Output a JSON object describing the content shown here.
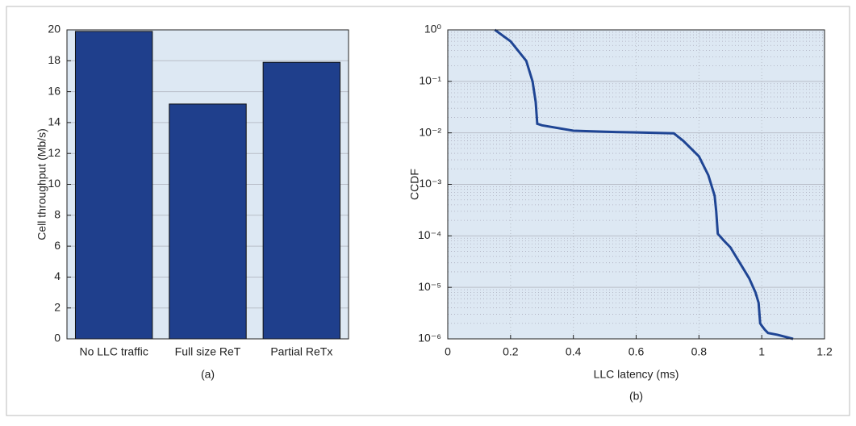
{
  "chart_data": [
    {
      "type": "bar",
      "ylabel": "Cell throughput (Mb/s)",
      "caption": "(a)",
      "categories": [
        "No LLC traffic",
        "Full size ReT",
        "Partial ReTx"
      ],
      "values": [
        19.9,
        15.2,
        17.9
      ],
      "color": "#1f3f8c",
      "ylim": [
        0,
        20
      ],
      "yticks": [
        0,
        2,
        4,
        6,
        8,
        10,
        12,
        14,
        16,
        18,
        20
      ],
      "grid": true
    },
    {
      "type": "line",
      "xlabel": "LLC latency (ms)",
      "ylabel": "CCDF",
      "caption": "(b)",
      "x": [
        0.15,
        0.2,
        0.25,
        0.27,
        0.28,
        0.285,
        0.3,
        0.4,
        0.5,
        0.6,
        0.72,
        0.75,
        0.8,
        0.83,
        0.85,
        0.855,
        0.86,
        0.88,
        0.9,
        0.93,
        0.96,
        0.98,
        0.99,
        0.995,
        1.0,
        1.01,
        1.02,
        1.05,
        1.1
      ],
      "series": [
        {
          "name": "CCDF",
          "color": "#1f4594",
          "values": [
            1,
            0.6,
            0.25,
            0.1,
            0.04,
            0.015,
            0.014,
            0.011,
            0.0105,
            0.0102,
            0.0098,
            0.007,
            0.0035,
            0.0015,
            0.0006,
            0.0003,
            0.00011,
            8e-05,
            6e-05,
            3e-05,
            1.5e-05,
            8e-06,
            5e-06,
            2e-06,
            1.8e-06,
            1.5e-06,
            1.3e-06,
            1.2e-06,
            1e-06
          ]
        }
      ],
      "xlim": [
        0,
        1.2
      ],
      "xticks": [
        0,
        0.2,
        0.4,
        0.6,
        0.8,
        1,
        1.2
      ],
      "ylim": [
        1e-06,
        1
      ],
      "log_y": true,
      "yticks": [
        {
          "value": 1e-06,
          "label": "10⁻⁶"
        },
        {
          "value": 1e-05,
          "label": "10⁻⁵"
        },
        {
          "value": 0.0001,
          "label": "10⁻⁴"
        },
        {
          "value": 0.001,
          "label": "10⁻³"
        },
        {
          "value": 0.01,
          "label": "10⁻²"
        },
        {
          "value": 0.1,
          "label": "10⁻¹"
        },
        {
          "value": 1,
          "label": "10⁰"
        }
      ],
      "grid": true,
      "minor_grid": true
    }
  ]
}
